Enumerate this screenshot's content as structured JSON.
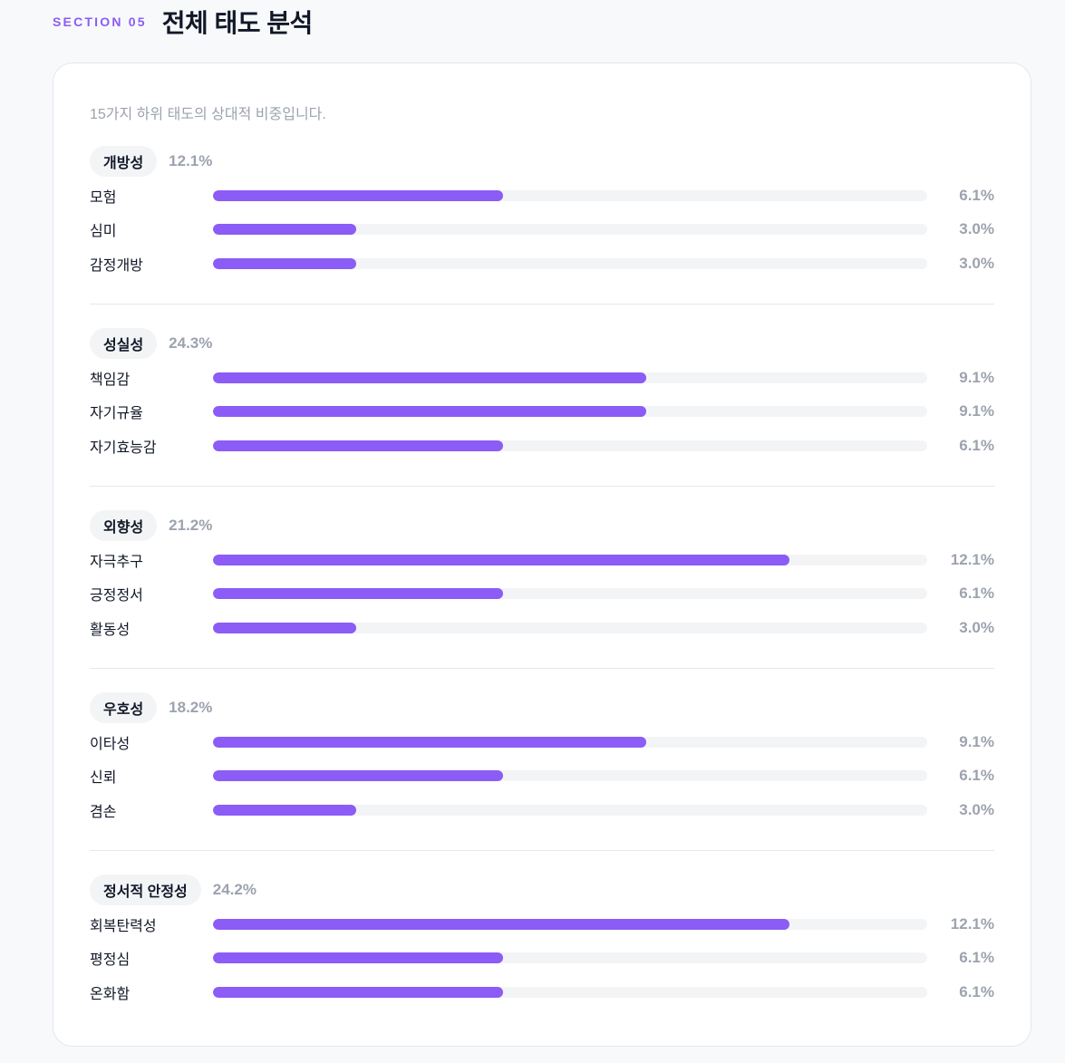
{
  "header": {
    "section_label": "SECTION 05",
    "title": "전체 태도 분석"
  },
  "card": {
    "description": "15가지 하위 태도의 상대적 비중입니다."
  },
  "colors": {
    "accent": "#8b5cf6",
    "track": "#f3f4f6",
    "muted_text": "#9ca3af",
    "pill_bg": "#f3f4f6"
  },
  "groups": [
    {
      "name": "개방성",
      "pct": "12.1%",
      "items": [
        {
          "label": "모험",
          "value": 6.1,
          "display": "6.1%"
        },
        {
          "label": "심미",
          "value": 3.0,
          "display": "3.0%"
        },
        {
          "label": "감정개방",
          "value": 3.0,
          "display": "3.0%"
        }
      ]
    },
    {
      "name": "성실성",
      "pct": "24.3%",
      "items": [
        {
          "label": "책임감",
          "value": 9.1,
          "display": "9.1%"
        },
        {
          "label": "자기규율",
          "value": 9.1,
          "display": "9.1%"
        },
        {
          "label": "자기효능감",
          "value": 6.1,
          "display": "6.1%"
        }
      ]
    },
    {
      "name": "외향성",
      "pct": "21.2%",
      "items": [
        {
          "label": "자극추구",
          "value": 12.1,
          "display": "12.1%"
        },
        {
          "label": "긍정정서",
          "value": 6.1,
          "display": "6.1%"
        },
        {
          "label": "활동성",
          "value": 3.0,
          "display": "3.0%"
        }
      ]
    },
    {
      "name": "우호성",
      "pct": "18.2%",
      "items": [
        {
          "label": "이타성",
          "value": 9.1,
          "display": "9.1%"
        },
        {
          "label": "신뢰",
          "value": 6.1,
          "display": "6.1%"
        },
        {
          "label": "겸손",
          "value": 3.0,
          "display": "3.0%"
        }
      ]
    },
    {
      "name": "정서적 안정성",
      "pct": "24.2%",
      "items": [
        {
          "label": "회복탄력성",
          "value": 12.1,
          "display": "12.1%"
        },
        {
          "label": "평정심",
          "value": 6.1,
          "display": "6.1%"
        },
        {
          "label": "온화함",
          "value": 6.1,
          "display": "6.1%"
        }
      ]
    }
  ],
  "chart_data": {
    "type": "bar",
    "orientation": "horizontal",
    "title": "전체 태도 분석",
    "subtitle": "15가지 하위 태도의 상대적 비중입니다.",
    "scale_max": 15,
    "unit": "%",
    "groups": [
      {
        "name": "개방성",
        "total": 12.1,
        "categories": [
          "모험",
          "심미",
          "감정개방"
        ],
        "values": [
          6.1,
          3.0,
          3.0
        ]
      },
      {
        "name": "성실성",
        "total": 24.3,
        "categories": [
          "책임감",
          "자기규율",
          "자기효능감"
        ],
        "values": [
          9.1,
          9.1,
          6.1
        ]
      },
      {
        "name": "외향성",
        "total": 21.2,
        "categories": [
          "자극추구",
          "긍정정서",
          "활동성"
        ],
        "values": [
          12.1,
          6.1,
          3.0
        ]
      },
      {
        "name": "우호성",
        "total": 18.2,
        "categories": [
          "이타성",
          "신뢰",
          "겸손"
        ],
        "values": [
          9.1,
          6.1,
          3.0
        ]
      },
      {
        "name": "정서적 안정성",
        "total": 24.2,
        "categories": [
          "회복탄력성",
          "평정심",
          "온화함"
        ],
        "values": [
          12.1,
          6.1,
          6.1
        ]
      }
    ],
    "grid": false,
    "legend": "none"
  }
}
